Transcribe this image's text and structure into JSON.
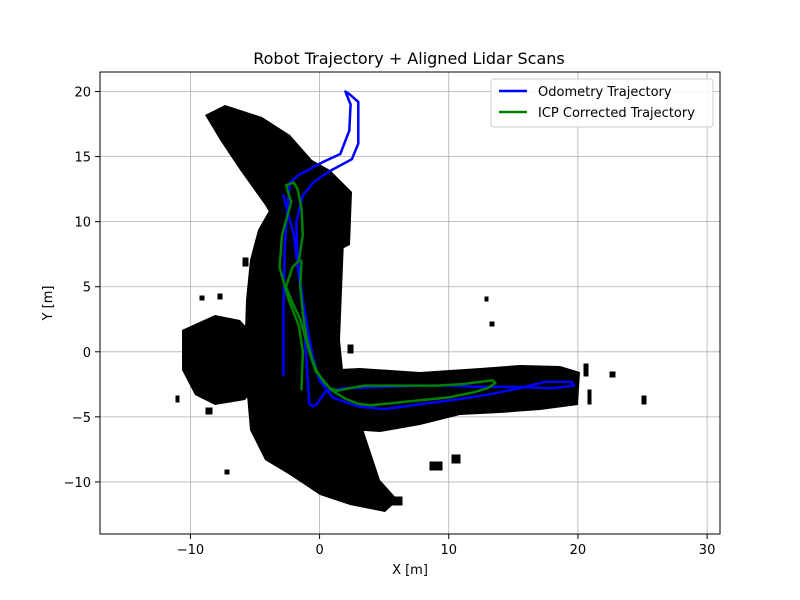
{
  "chart_data": {
    "type": "line",
    "title": "Robot Trajectory + Aligned Lidar Scans",
    "xlabel": "X [m]",
    "ylabel": "Y [m]",
    "xlim": [
      -17,
      31
    ],
    "ylim": [
      -14,
      21.5
    ],
    "xticks": [
      -10,
      0,
      10,
      20,
      30
    ],
    "yticks": [
      -10,
      -5,
      0,
      5,
      10,
      15,
      20
    ],
    "grid": true,
    "legend_position": "top-right",
    "series": [
      {
        "name": "Odometry Trajectory",
        "color": "#0000ff",
        "x": [
          -2.8,
          -2.8,
          -2.7,
          -2.5,
          -2.3,
          -1.6,
          -0.8,
          -0.3,
          0.3,
          1.6,
          2.3,
          2.4,
          2.0,
          2.3,
          3.0,
          3.0,
          2.5,
          1.0,
          0.2,
          -0.5,
          -1.3,
          -1.8,
          -1.7,
          -1.3,
          -0.8,
          -0.5,
          0.0,
          1.0,
          3.0,
          5.0,
          8.0,
          11.0,
          13.0,
          15.5,
          17.5,
          19.5,
          19.7,
          18.0,
          15.0,
          12.5,
          10.0,
          8.0,
          5.0,
          2.0,
          0.5,
          -0.2,
          -0.5,
          -0.8,
          -1.0,
          -1.2,
          -1.5,
          -2.0,
          -2.8
        ],
        "y": [
          -1.8,
          3.0,
          8.0,
          11.0,
          13.0,
          13.6,
          14.0,
          14.3,
          14.6,
          15.2,
          17.0,
          19.0,
          20.0,
          19.8,
          19.2,
          16.0,
          14.8,
          14.0,
          13.5,
          13.0,
          12.0,
          10.0,
          7.0,
          4.0,
          1.0,
          -0.5,
          -2.2,
          -3.5,
          -4.2,
          -4.4,
          -4.0,
          -3.6,
          -3.3,
          -2.8,
          -2.3,
          -2.3,
          -2.6,
          -2.8,
          -2.7,
          -2.7,
          -2.6,
          -2.6,
          -2.7,
          -2.8,
          -3.0,
          -4.0,
          -4.2,
          -4.0,
          -1.0,
          2.0,
          5.0,
          9.0,
          12.0
        ]
      },
      {
        "name": "ICP Corrected Trajectory",
        "color": "#008000",
        "x": [
          -1.4,
          -1.3,
          -1.6,
          -2.4,
          -3.1,
          -2.9,
          -2.2,
          -2.6,
          -2.0,
          -1.7,
          -1.4,
          -1.3,
          -1.6,
          -2.1,
          -2.6,
          -2.2,
          -1.5,
          -0.8,
          -0.3,
          0.3,
          0.8,
          1.4,
          2.3,
          3.5,
          5.0,
          7.0,
          9.0,
          11.0,
          12.5,
          13.4,
          13.6,
          13.0,
          12.0,
          10.0,
          8.0,
          6.0,
          4.0,
          3.0,
          2.0,
          1.0,
          0.3,
          -0.2,
          -0.6,
          -1.0,
          -1.3,
          -1.5,
          -1.4
        ],
        "y": [
          -2.9,
          0.0,
          2.0,
          4.0,
          6.5,
          9.0,
          11.5,
          12.8,
          13.0,
          12.5,
          11.0,
          9.0,
          7.0,
          6.5,
          5.0,
          4.0,
          2.5,
          0.0,
          -1.5,
          -2.2,
          -2.8,
          -3.0,
          -2.8,
          -2.6,
          -2.6,
          -2.6,
          -2.6,
          -2.5,
          -2.3,
          -2.2,
          -2.4,
          -2.8,
          -3.1,
          -3.5,
          -3.7,
          -3.9,
          -4.1,
          -4.0,
          -3.6,
          -3.0,
          -2.3,
          -1.5,
          -0.5,
          1.0,
          3.0,
          5.0,
          7.0
        ]
      }
    ],
    "scan_region_color": "#000000"
  }
}
